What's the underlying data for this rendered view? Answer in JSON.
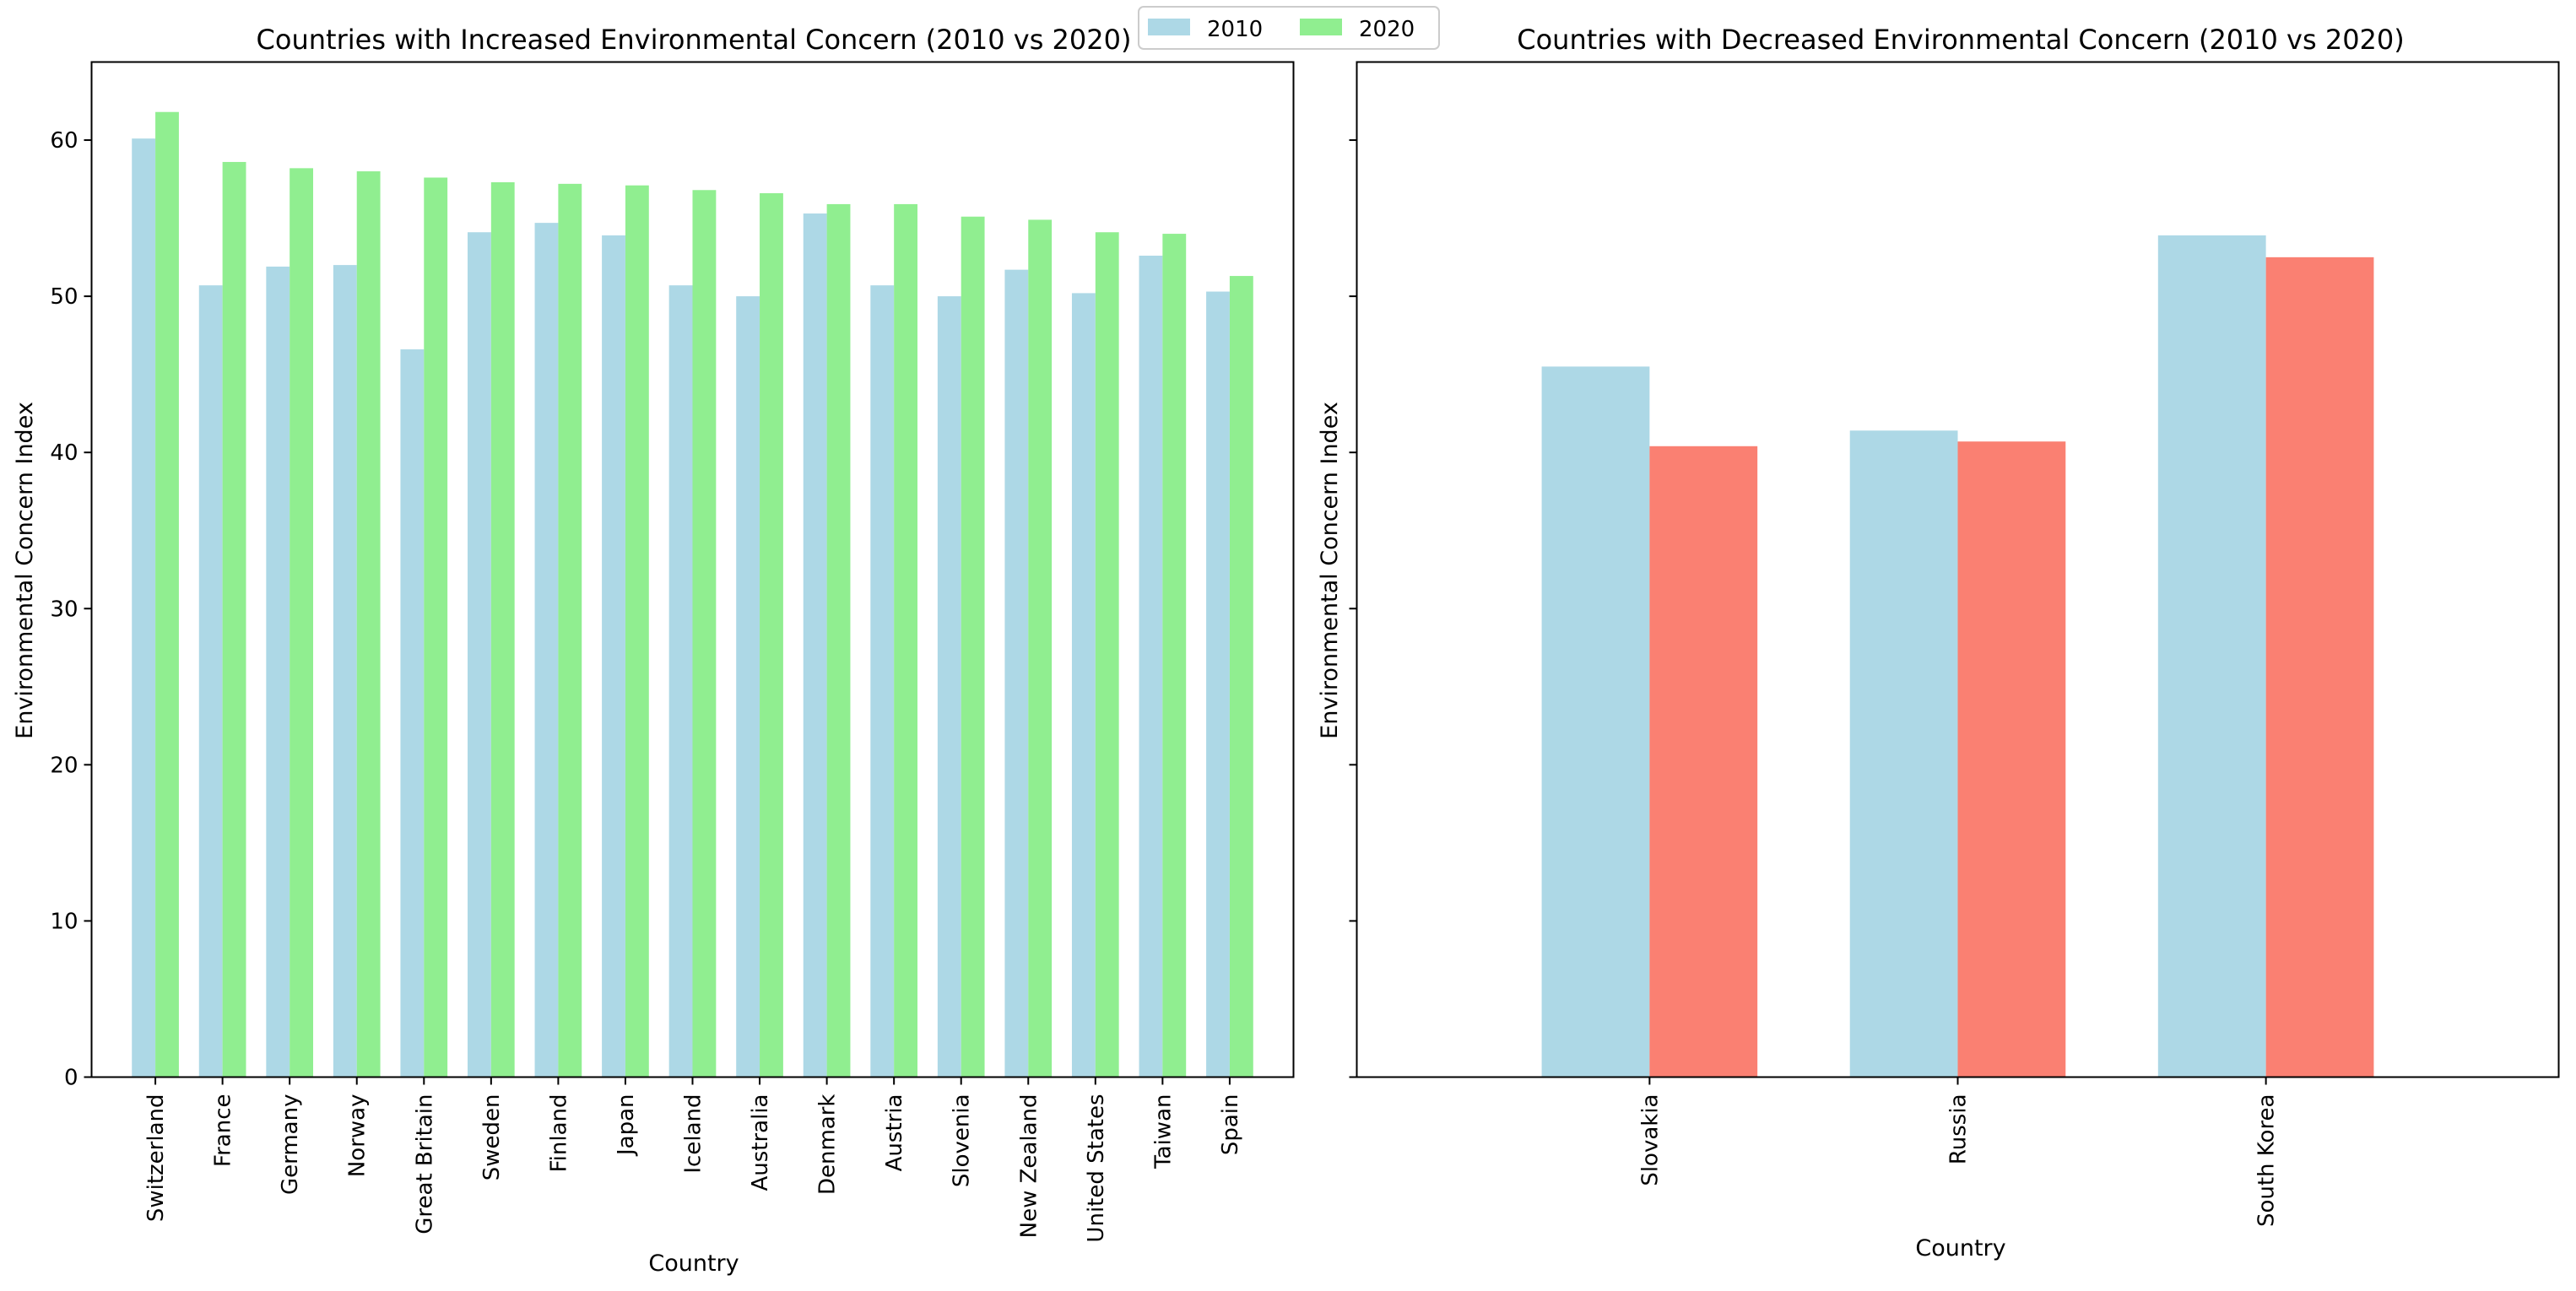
{
  "legend": {
    "items": [
      {
        "label": "2010",
        "color": "#add8e6"
      },
      {
        "label": "2020",
        "color": "#90ee90"
      }
    ],
    "placement": "top-center"
  },
  "chart_data": [
    {
      "type": "bar",
      "title": "Countries with Increased Environmental Concern (2010 vs 2020)",
      "xlabel": "Country",
      "ylabel": "Environmental Concern Index",
      "ylim": [
        0,
        65
      ],
      "yticks": [
        0,
        10,
        20,
        30,
        40,
        50,
        60
      ],
      "categories": [
        "Switzerland",
        "France",
        "Germany",
        "Norway",
        "Great Britain",
        "Sweden",
        "Finland",
        "Japan",
        "Iceland",
        "Australia",
        "Denmark",
        "Austria",
        "Slovenia",
        "New Zealand",
        "United States",
        "Taiwan",
        "Spain"
      ],
      "series": [
        {
          "name": "2010",
          "color": "#add8e6",
          "values": [
            60.1,
            50.7,
            51.9,
            52.0,
            46.6,
            54.1,
            54.7,
            53.9,
            50.7,
            50.0,
            55.3,
            50.7,
            50.0,
            51.7,
            50.2,
            52.6,
            50.3
          ]
        },
        {
          "name": "2020",
          "color": "#90ee90",
          "values": [
            61.8,
            58.6,
            58.2,
            58.0,
            57.6,
            57.3,
            57.2,
            57.1,
            56.8,
            56.6,
            55.9,
            55.9,
            55.1,
            54.9,
            54.1,
            54.0,
            51.3
          ]
        }
      ],
      "grid": false
    },
    {
      "type": "bar",
      "title": "Countries with Decreased Environmental Concern (2010 vs 2020)",
      "xlabel": "Country",
      "ylabel": "Environmental Concern Index",
      "ylim": [
        0,
        65
      ],
      "yticks": [
        0,
        10,
        20,
        30,
        40,
        50,
        60
      ],
      "tick_labels_visible": false,
      "categories": [
        "Slovakia",
        "Russia",
        "South Korea"
      ],
      "series": [
        {
          "name": "2010",
          "color": "#add8e6",
          "values": [
            45.5,
            41.4,
            53.9
          ]
        },
        {
          "name": "2020",
          "color": "#fa8072",
          "values": [
            40.4,
            40.7,
            52.5
          ]
        }
      ],
      "grid": false
    }
  ]
}
